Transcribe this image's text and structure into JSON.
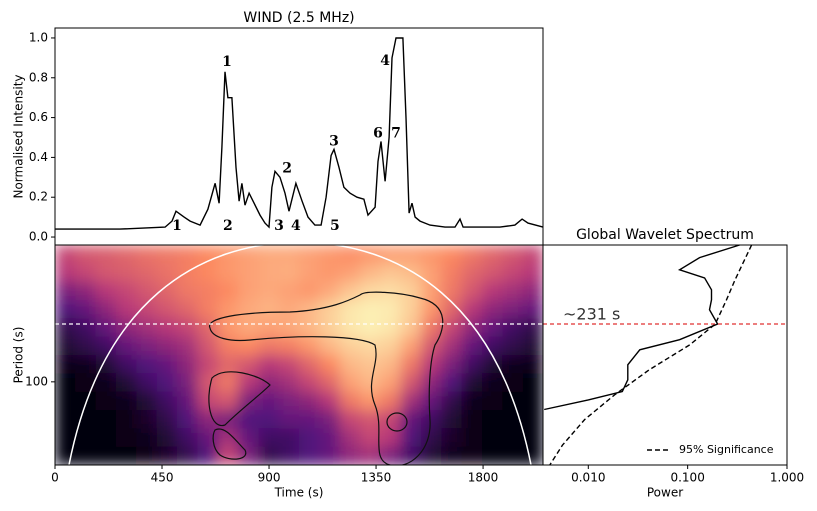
{
  "chart_data": [
    {
      "type": "line",
      "title": "WIND (2.5 MHz)",
      "ylabel": "Normalised Intensity",
      "xlim": [
        0,
        2052
      ],
      "ylim": [
        -0.04,
        1.05
      ],
      "yticks": [
        {
          "value": 0,
          "label": "0.0"
        },
        0.2,
        0.4,
        0.6,
        0.8,
        {
          "value": 1,
          "label": "1.0"
        }
      ],
      "x": [
        0,
        273,
        463,
        492,
        509,
        543,
        568,
        610,
        643,
        673,
        690,
        702,
        715,
        727,
        744,
        761,
        774,
        786,
        799,
        816,
        837,
        862,
        883,
        900,
        912,
        925,
        946,
        967,
        984,
        1013,
        1039,
        1064,
        1093,
        1119,
        1140,
        1161,
        1173,
        1194,
        1215,
        1241,
        1270,
        1299,
        1316,
        1346,
        1358,
        1371,
        1388,
        1405,
        1417,
        1434,
        1463,
        1476,
        1489,
        1501,
        1514,
        1535,
        1577,
        1640,
        1682,
        1703,
        1716,
        1787,
        1871,
        1934,
        1964,
        1989,
        2052
      ],
      "series": [
        {
          "color": "#000000",
          "values": [
            0.04,
            0.04,
            0.05,
            0.08,
            0.13,
            0.1,
            0.08,
            0.06,
            0.14,
            0.27,
            0.17,
            0.45,
            0.83,
            0.7,
            0.7,
            0.35,
            0.18,
            0.27,
            0.16,
            0.22,
            0.17,
            0.11,
            0.07,
            0.05,
            0.25,
            0.33,
            0.3,
            0.22,
            0.13,
            0.27,
            0.18,
            0.1,
            0.06,
            0.06,
            0.2,
            0.41,
            0.44,
            0.35,
            0.25,
            0.22,
            0.2,
            0.19,
            0.11,
            0.15,
            0.38,
            0.48,
            0.28,
            0.5,
            0.9,
            1.0,
            1.0,
            0.6,
            0.12,
            0.17,
            0.1,
            0.08,
            0.06,
            0.05,
            0.05,
            0.09,
            0.05,
            0.05,
            0.05,
            0.06,
            0.09,
            0.07,
            0.05
          ]
        }
      ],
      "annotations": [
        {
          "text": "1",
          "x": 723,
          "y": 0.88,
          "color": "#7cc47a"
        },
        {
          "text": "2",
          "x": 976,
          "y": 0.345,
          "color": "#7cc47a"
        },
        {
          "text": "3",
          "x": 1173,
          "y": 0.48,
          "color": "#7cc47a"
        },
        {
          "text": "4",
          "x": 1388,
          "y": 0.885,
          "color": "#7cc47a"
        },
        {
          "text": "1",
          "x": 513,
          "y": 0.055,
          "color": "#7c80e0"
        },
        {
          "text": "2",
          "x": 727,
          "y": 0.055,
          "color": "#7c80e0"
        },
        {
          "text": "3",
          "x": 942,
          "y": 0.055,
          "color": "#7c80e0"
        },
        {
          "text": "4",
          "x": 1013,
          "y": 0.055,
          "color": "#7c80e0"
        },
        {
          "text": "5",
          "x": 1177,
          "y": 0.055,
          "color": "#7c80e0"
        },
        {
          "text": "6",
          "x": 1358,
          "y": 0.52,
          "color": "#7c80e0"
        },
        {
          "text": "7",
          "x": 1434,
          "y": 0.52,
          "color": "#7c80e0"
        }
      ]
    },
    {
      "type": "heatmap",
      "xlabel": "Time (s)",
      "ylabel": "Period (s)",
      "xlim": [
        0,
        2052
      ],
      "ylim": [
        30,
        725
      ],
      "ylog": true,
      "xticks": [
        0,
        450,
        900,
        1350,
        1800
      ],
      "yticks": [
        100
      ],
      "hline": 231,
      "colormap": "magma",
      "values": [
        [
          0.55,
          0.6,
          0.62,
          0.65,
          0.68,
          0.7,
          0.72,
          0.75,
          0.78,
          0.8,
          0.82,
          0.82,
          0.8,
          0.78,
          0.76,
          0.78,
          0.8,
          0.8,
          0.78,
          0.75,
          0.7,
          0.65,
          0.6,
          0.55
        ],
        [
          0.5,
          0.55,
          0.6,
          0.62,
          0.65,
          0.68,
          0.72,
          0.75,
          0.78,
          0.8,
          0.82,
          0.83,
          0.8,
          0.78,
          0.8,
          0.85,
          0.88,
          0.86,
          0.8,
          0.72,
          0.65,
          0.6,
          0.55,
          0.5
        ],
        [
          0.35,
          0.4,
          0.5,
          0.55,
          0.6,
          0.65,
          0.7,
          0.72,
          0.75,
          0.8,
          0.82,
          0.8,
          0.78,
          0.82,
          0.88,
          0.92,
          0.93,
          0.9,
          0.8,
          0.7,
          0.6,
          0.5,
          0.45,
          0.4
        ],
        [
          0.25,
          0.3,
          0.4,
          0.5,
          0.55,
          0.6,
          0.65,
          0.72,
          0.78,
          0.82,
          0.84,
          0.82,
          0.85,
          0.9,
          0.95,
          0.97,
          0.96,
          0.9,
          0.78,
          0.65,
          0.5,
          0.4,
          0.35,
          0.3
        ],
        [
          0.15,
          0.2,
          0.3,
          0.4,
          0.45,
          0.5,
          0.55,
          0.65,
          0.78,
          0.82,
          0.8,
          0.82,
          0.85,
          0.9,
          0.95,
          0.97,
          0.95,
          0.88,
          0.7,
          0.55,
          0.4,
          0.3,
          0.2,
          0.15
        ],
        [
          0.1,
          0.15,
          0.2,
          0.3,
          0.35,
          0.4,
          0.45,
          0.6,
          0.72,
          0.75,
          0.7,
          0.72,
          0.78,
          0.85,
          0.9,
          0.92,
          0.9,
          0.8,
          0.6,
          0.45,
          0.3,
          0.2,
          0.15,
          0.1
        ],
        [
          0.05,
          0.05,
          0.1,
          0.2,
          0.25,
          0.3,
          0.4,
          0.55,
          0.65,
          0.6,
          0.5,
          0.55,
          0.65,
          0.75,
          0.85,
          0.88,
          0.85,
          0.7,
          0.5,
          0.35,
          0.2,
          0.1,
          0.05,
          0.05
        ],
        [
          0.02,
          0.03,
          0.05,
          0.1,
          0.2,
          0.25,
          0.35,
          0.6,
          0.7,
          0.5,
          0.4,
          0.45,
          0.55,
          0.65,
          0.8,
          0.85,
          0.8,
          0.6,
          0.4,
          0.25,
          0.1,
          0.05,
          0.03,
          0.02
        ],
        [
          0.02,
          0.02,
          0.03,
          0.05,
          0.1,
          0.2,
          0.3,
          0.55,
          0.6,
          0.35,
          0.3,
          0.35,
          0.4,
          0.5,
          0.7,
          0.78,
          0.7,
          0.45,
          0.3,
          0.15,
          0.05,
          0.03,
          0.02,
          0.02
        ],
        [
          0.02,
          0.02,
          0.02,
          0.03,
          0.08,
          0.15,
          0.25,
          0.4,
          0.35,
          0.25,
          0.25,
          0.3,
          0.3,
          0.35,
          0.55,
          0.6,
          0.55,
          0.3,
          0.2,
          0.1,
          0.04,
          0.02,
          0.02,
          0.02
        ],
        [
          0.02,
          0.02,
          0.02,
          0.03,
          0.05,
          0.1,
          0.2,
          0.3,
          0.45,
          0.3,
          0.2,
          0.2,
          0.25,
          0.3,
          0.45,
          0.55,
          0.5,
          0.25,
          0.15,
          0.08,
          0.03,
          0.02,
          0.02,
          0.02
        ],
        [
          0.02,
          0.02,
          0.02,
          0.02,
          0.04,
          0.08,
          0.15,
          0.25,
          0.55,
          0.35,
          0.15,
          0.2,
          0.25,
          0.3,
          0.4,
          0.45,
          0.35,
          0.2,
          0.1,
          0.05,
          0.03,
          0.02,
          0.02,
          0.02
        ]
      ]
    },
    {
      "type": "line",
      "orientation": "horizontal",
      "title": "Global Wavelet Spectrum",
      "xlabel": "Power",
      "xlim": [
        0.0035,
        1.0
      ],
      "ylim": [
        30,
        725
      ],
      "xlog": true,
      "ylog": true,
      "xticks": [
        {
          "value": 0.01,
          "label": "0.010"
        },
        {
          "value": 0.1,
          "label": "0.100"
        },
        {
          "value": 1,
          "label": "1.000"
        }
      ],
      "hline": {
        "value": 231,
        "label": "~231 s",
        "color": "#e03030"
      },
      "legend": "lower right",
      "series": [
        {
          "color": "#000000",
          "style": "solid",
          "y": [
            725,
            604,
            506,
            450,
            379,
            328,
            284,
            231,
            184,
            159,
            128,
            103,
            87,
            77,
            67
          ],
          "values": [
            0.333,
            0.132,
            0.083,
            0.148,
            0.174,
            0.174,
            0.166,
            0.2,
            0.083,
            0.033,
            0.025,
            0.025,
            0.022,
            0.01,
            0.0036
          ]
        },
        {
          "name": "95% Significance",
          "color": "#000000",
          "style": "dashed",
          "y": [
            725,
            439,
            328,
            231,
            171,
            119,
            83,
            58,
            40,
            30
          ],
          "values": [
            0.44,
            0.3,
            0.246,
            0.19,
            0.105,
            0.041,
            0.0185,
            0.0092,
            0.0055,
            0.0041
          ]
        }
      ]
    }
  ]
}
